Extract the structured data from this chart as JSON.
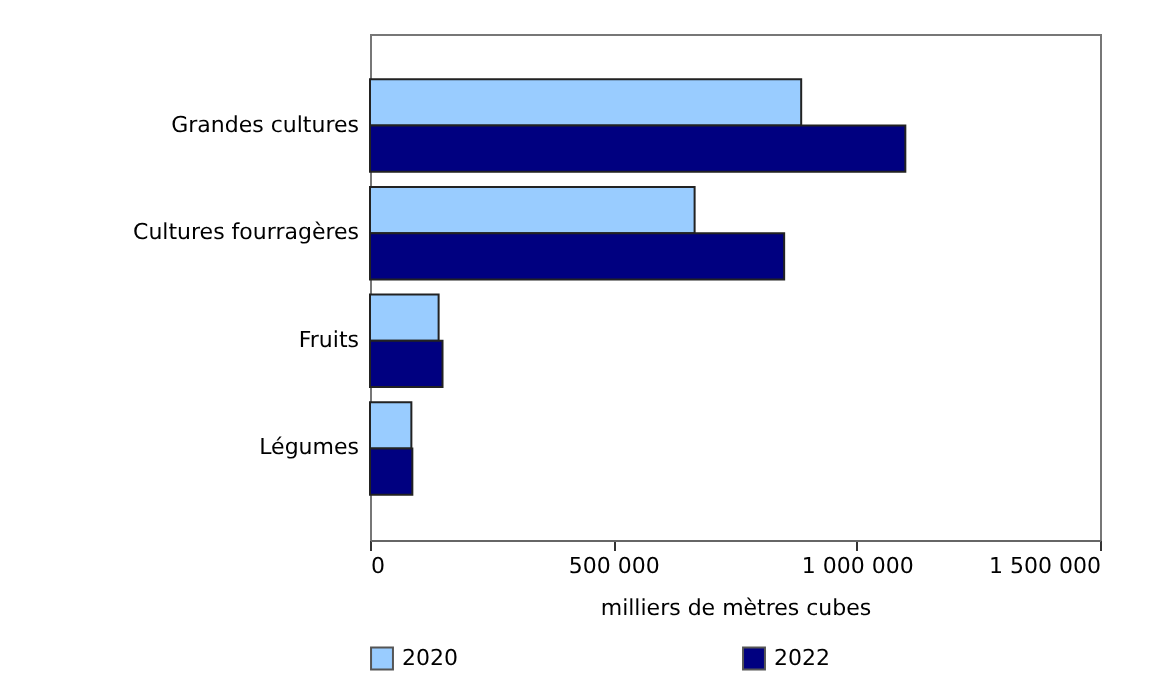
{
  "chart_data": {
    "type": "bar",
    "orientation": "horizontal",
    "xlabel": "milliers de mètres cubes",
    "categories": [
      "Grandes cultures",
      "Cultures fourragères",
      "Fruits",
      "Légumes"
    ],
    "series": [
      {
        "name": "2020",
        "color": "#99ccff",
        "values": [
          886000,
          667000,
          141000,
          85000
        ]
      },
      {
        "name": "2022",
        "color": "#000080",
        "values": [
          1100000,
          851000,
          149000,
          87000
        ]
      }
    ],
    "xlim": [
      0,
      1500000
    ],
    "xticks": [
      {
        "value": 0,
        "label": "0"
      },
      {
        "value": 500000,
        "label": "500 000"
      },
      {
        "value": 1000000,
        "label": "1 000 000"
      },
      {
        "value": 1500000,
        "label": "1 500 000"
      }
    ],
    "grid": false,
    "legend": "bottom"
  }
}
